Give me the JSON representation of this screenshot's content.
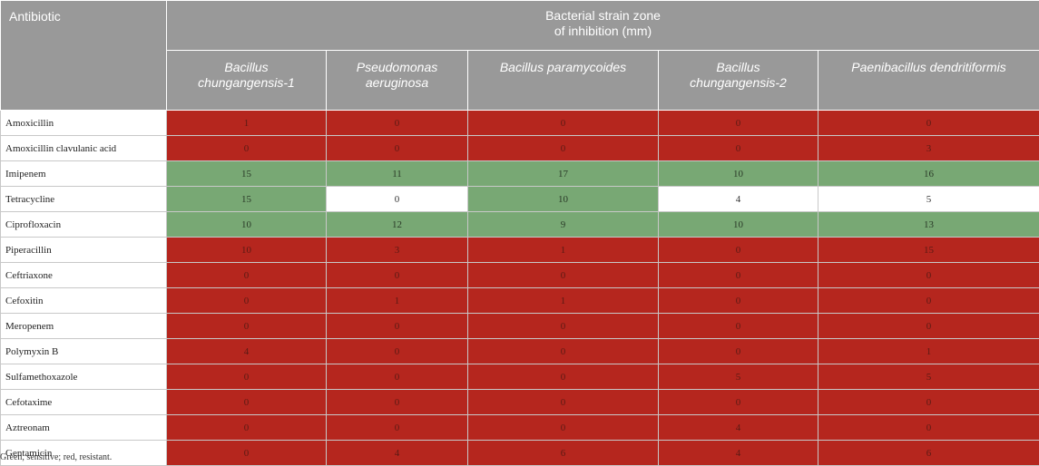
{
  "header": {
    "antibiotic": "Antibiotic",
    "group": "Bacterial strain zone\nof inhibition (mm)",
    "strains": [
      "Bacillus\nchungangensis-1",
      "Pseudomonas\naeruginosa",
      "Bacillus paramycoides",
      "Bacillus\nchungangensis-2",
      "Paenibacillus dendritiformis"
    ]
  },
  "colors": {
    "sensitive": "#78a874",
    "resistant": "#b5261e",
    "intermediate": "#ffffff"
  },
  "rows": [
    {
      "name": "Amoxicillin",
      "values": [
        "1",
        "0",
        "0",
        "0",
        "0"
      ],
      "status": [
        "r",
        "r",
        "r",
        "r",
        "r"
      ]
    },
    {
      "name": "Amoxicillin clavulanic acid",
      "values": [
        "0",
        "0",
        "0",
        "0",
        "3"
      ],
      "status": [
        "r",
        "r",
        "r",
        "r",
        "r"
      ]
    },
    {
      "name": "Imipenem",
      "values": [
        "15",
        "11",
        "17",
        "10",
        "16"
      ],
      "status": [
        "g",
        "g",
        "g",
        "g",
        "g"
      ]
    },
    {
      "name": "Tetracycline",
      "values": [
        "15",
        "0",
        "10",
        "4",
        "5"
      ],
      "status": [
        "g",
        "w",
        "g",
        "w",
        "w"
      ]
    },
    {
      "name": "Ciprofloxacin",
      "values": [
        "10",
        "12",
        "9",
        "10",
        "13"
      ],
      "status": [
        "g",
        "g",
        "g",
        "g",
        "g"
      ]
    },
    {
      "name": "Piperacillin",
      "values": [
        "10",
        "3",
        "1",
        "0",
        "15"
      ],
      "status": [
        "r",
        "r",
        "r",
        "r",
        "r"
      ]
    },
    {
      "name": "Ceftriaxone",
      "values": [
        "0",
        "0",
        "0",
        "0",
        "0"
      ],
      "status": [
        "r",
        "r",
        "r",
        "r",
        "r"
      ]
    },
    {
      "name": "Cefoxitin",
      "values": [
        "0",
        "1",
        "1",
        "0",
        "0"
      ],
      "status": [
        "r",
        "r",
        "r",
        "r",
        "r"
      ]
    },
    {
      "name": "Meropenem",
      "values": [
        "0",
        "0",
        "0",
        "0",
        "0"
      ],
      "status": [
        "r",
        "r",
        "r",
        "r",
        "r"
      ]
    },
    {
      "name": "Polymyxin B",
      "values": [
        "4",
        "0",
        "0",
        "0",
        "1"
      ],
      "status": [
        "r",
        "r",
        "r",
        "r",
        "r"
      ]
    },
    {
      "name": "Sulfamethoxazole",
      "values": [
        "0",
        "0",
        "0",
        "5",
        "5"
      ],
      "status": [
        "r",
        "r",
        "r",
        "r",
        "r"
      ]
    },
    {
      "name": "Cefotaxime",
      "values": [
        "0",
        "0",
        "0",
        "0",
        "0"
      ],
      "status": [
        "r",
        "r",
        "r",
        "r",
        "r"
      ]
    },
    {
      "name": "Aztreonam",
      "values": [
        "0",
        "0",
        "0",
        "4",
        "0"
      ],
      "status": [
        "r",
        "r",
        "r",
        "r",
        "r"
      ]
    },
    {
      "name": "Gentamicin",
      "values": [
        "0",
        "4",
        "6",
        "4",
        "6"
      ],
      "status": [
        "r",
        "r",
        "r",
        "r",
        "r"
      ]
    }
  ],
  "footnote": "Green, sensitive; red, resistant."
}
